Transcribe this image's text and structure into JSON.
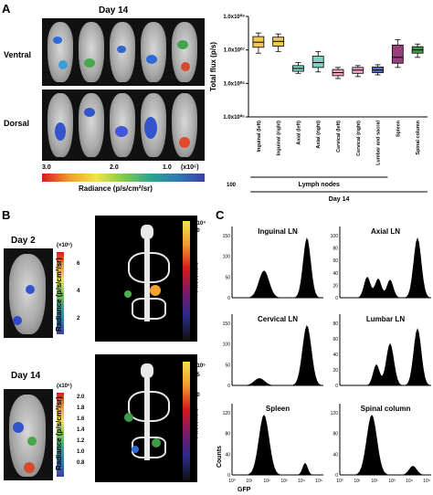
{
  "panelA": {
    "letter": "A",
    "day_title": "Day 14",
    "ventral": "Ventral",
    "dorsal": "Dorsal",
    "scale_ticks": [
      "3.0",
      "2.0",
      "1.0"
    ],
    "scale_multiplier": "(x10⁶)",
    "scale_label": "Radiance (p/s/cm²/sr)"
  },
  "panelA_chart": {
    "ylabel": "Total flux (p/s)",
    "yticks": [
      "1.0x10⁰⁸",
      "1.0x10⁰⁷",
      "1.0x10⁰⁶",
      "1.0x10⁰⁵"
    ],
    "y_floor": "100",
    "group_label": "Lymph nodes",
    "day_label": "Day 14"
  },
  "chart_data": {
    "type": "box",
    "categories": [
      "Inguinal (left)",
      "Inguinal (right)",
      "Axial (left)",
      "Axial (right)",
      "Cervical (left)",
      "Cervical (right)",
      "Lumbar and sacral",
      "Spleen",
      "Spinal column"
    ],
    "yscale": "log",
    "ylim": [
      100000,
      100000000
    ],
    "ylabel": "Total flux (p/s)",
    "colors": [
      "#f2c94c",
      "#f2c94c",
      "#7fd1c4",
      "#7fd1c4",
      "#f4a6c6",
      "#f4a6c6",
      "#5b6fb5",
      "#9b3f7a",
      "#3f9b4a"
    ],
    "boxes": [
      {
        "min": 8000000,
        "q1": 12000000,
        "median": 17000000,
        "q3": 25000000,
        "max": 32000000
      },
      {
        "min": 9000000,
        "q1": 13000000,
        "median": 18000000,
        "q3": 24000000,
        "max": 30000000
      },
      {
        "min": 2000000,
        "q1": 2300000,
        "median": 2800000,
        "q3": 3400000,
        "max": 4200000
      },
      {
        "min": 2200000,
        "q1": 3000000,
        "median": 4200000,
        "q3": 6500000,
        "max": 9000000
      },
      {
        "min": 1400000,
        "q1": 1700000,
        "median": 2100000,
        "q3": 2600000,
        "max": 3000000
      },
      {
        "min": 1600000,
        "q1": 2000000,
        "median": 2500000,
        "q3": 3000000,
        "max": 3400000
      },
      {
        "min": 1800000,
        "q1": 2100000,
        "median": 2500000,
        "q3": 3100000,
        "max": 3600000
      },
      {
        "min": 3000000,
        "q1": 4000000,
        "median": 6000000,
        "q3": 14000000,
        "max": 20000000
      },
      {
        "min": 6000000,
        "q1": 8000000,
        "median": 10000000,
        "q3": 12500000,
        "max": 15000000
      }
    ]
  },
  "panelB": {
    "letter": "B",
    "day2": "Day 2",
    "day14": "Day 14",
    "scale1_mult": "(×10⁶)",
    "scale1_ticks": [
      "6",
      "4",
      "2"
    ],
    "scale1_label": "Radiance (p/s/cm²/sr)",
    "photons1_ticks": [
      "10",
      "8",
      "6",
      "4",
      "2"
    ],
    "photons1_exp": "×10⁴",
    "photons_label": "Photons/s",
    "scale2_mult": "(x10⁶)",
    "scale2_ticks": [
      "2.0",
      "1.8",
      "1.6",
      "1.4",
      "1.2",
      "1.0",
      "0.8"
    ],
    "scale2_label": "Radiance (p/s/cm²/sr)",
    "photons2_ticks": [
      "15",
      "10",
      "8",
      "6"
    ],
    "photons2_exp": "×10⁵"
  },
  "panelC": {
    "letter": "C",
    "histograms": [
      {
        "title": "Inguinal LN",
        "yticks": [
          "150",
          "100",
          "50",
          "0"
        ]
      },
      {
        "title": "Axial LN",
        "yticks": [
          "100",
          "80",
          "60",
          "40",
          "20",
          "0"
        ]
      },
      {
        "title": "Cervical LN",
        "yticks": [
          "150",
          "100",
          "50",
          "0"
        ]
      },
      {
        "title": "Lumbar LN",
        "yticks": [
          "80",
          "60",
          "40",
          "20",
          "0"
        ]
      },
      {
        "title": "Spleen",
        "yticks": [
          "120",
          "80",
          "40",
          "0"
        ]
      },
      {
        "title": "Spinal column",
        "yticks": [
          "120",
          "80",
          "40",
          "0"
        ]
      }
    ],
    "xticks": [
      "10⁰",
      "10¹",
      "10²",
      "10³",
      "10⁴",
      "10⁵"
    ],
    "ylabel": "Counts",
    "xlabel": "GFP"
  }
}
